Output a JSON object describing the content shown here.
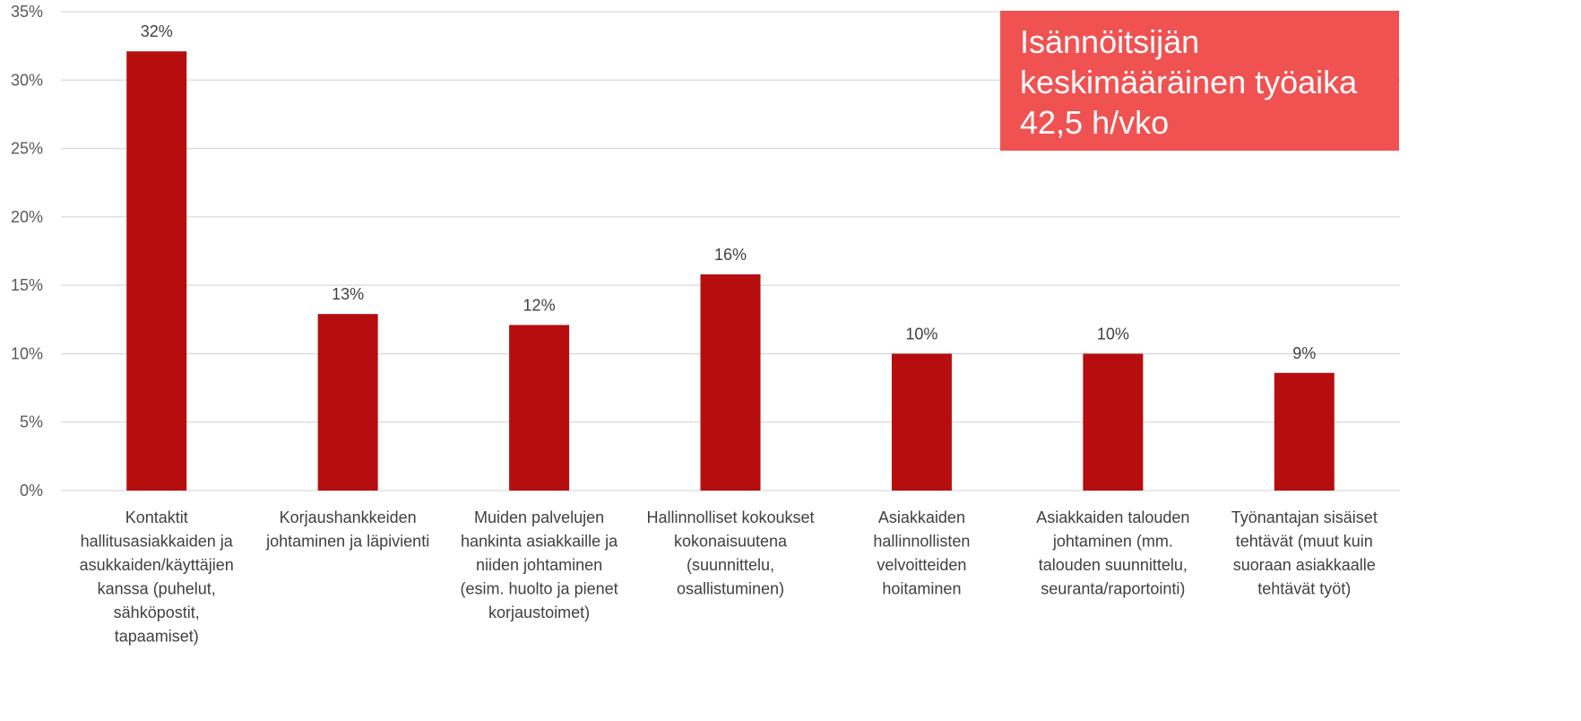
{
  "chart_data": {
    "type": "bar",
    "categories": [
      [
        "Kontaktit",
        "hallitusasiakkaiden ja",
        "asukkaiden/käyttäjien",
        "kanssa (puhelut,",
        "sähköpostit,",
        "tapaamiset)"
      ],
      [
        "Korjaushankkeiden",
        "johtaminen ja läpivienti"
      ],
      [
        "Muiden palvelujen",
        "hankinta asiakkaille ja",
        "niiden johtaminen",
        "(esim. huolto ja pienet",
        "korjaustoimet)"
      ],
      [
        "Hallinnolliset kokoukset",
        "kokonaisuutena",
        "(suunnittelu,",
        "osallistuminen)"
      ],
      [
        "Asiakkaiden",
        "hallinnollisten",
        "velvoitteiden",
        "hoitaminen"
      ],
      [
        "Asiakkaiden talouden",
        "johtaminen (mm.",
        "talouden suunnittelu,",
        "seuranta/raportointi)"
      ],
      [
        "Työnantajan sisäiset",
        "tehtävät (muut kuin",
        "suoraan asiakkaalle",
        "tehtävät työt)"
      ]
    ],
    "values": [
      32.1,
      12.9,
      12.1,
      15.8,
      10.0,
      10.0,
      8.6
    ],
    "data_labels": [
      "32%",
      "13%",
      "12%",
      "16%",
      "10%",
      "10%",
      "9%"
    ],
    "y_ticks": [
      0,
      5,
      10,
      15,
      20,
      25,
      30,
      35
    ],
    "y_tick_labels": [
      "0%",
      "5%",
      "10%",
      "15%",
      "20%",
      "25%",
      "30%",
      "35%"
    ],
    "ylim": [
      0,
      35
    ],
    "grid": true,
    "legend": "none",
    "colors": {
      "bar": "#b60e0e",
      "grid": "#d9d9d9",
      "callout": "#f05252"
    }
  },
  "callout": {
    "lines": [
      "Isännöitsijän",
      "keskimääräinen työaika",
      "42,5 h/vko"
    ]
  }
}
